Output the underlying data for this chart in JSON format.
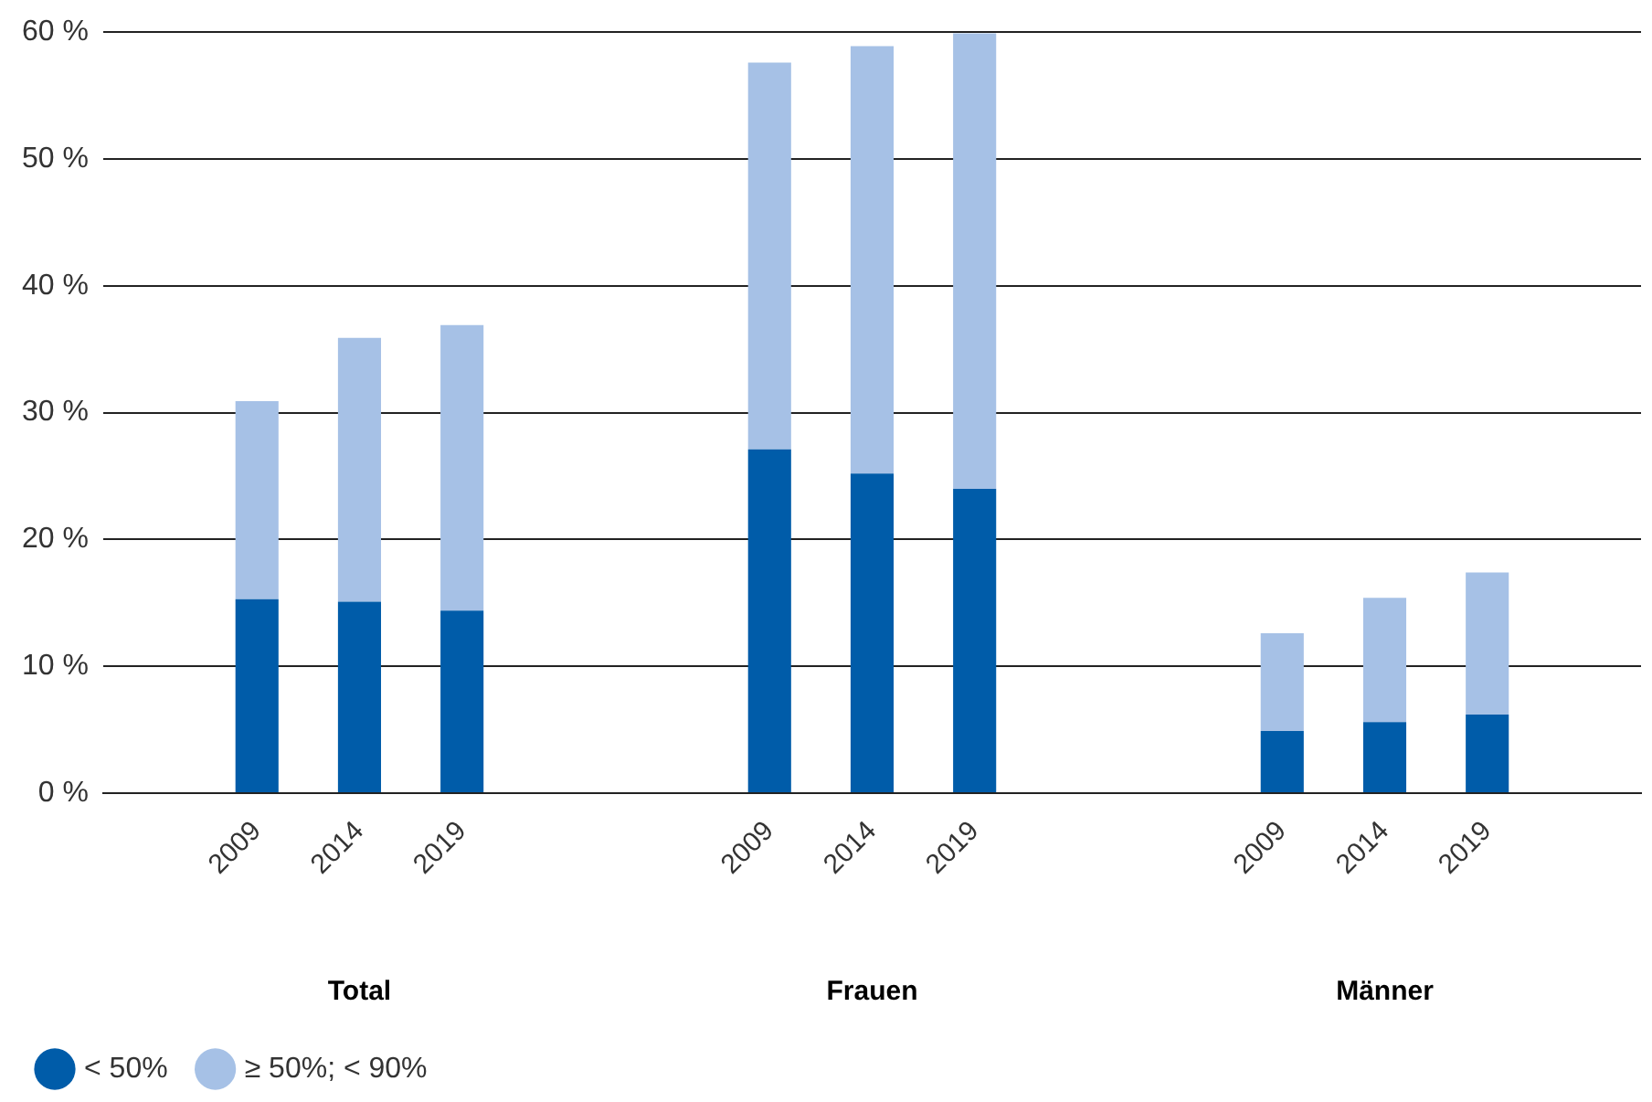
{
  "chart_data": {
    "type": "bar",
    "stacked": true,
    "categories": [
      null,
      "2009",
      "2014",
      "2019",
      null,
      null,
      "2009",
      "2014",
      "2019",
      null,
      null,
      "2009",
      "2014",
      "2019",
      null
    ],
    "series": [
      {
        "name": "< 50%",
        "color": "#005ca9",
        "values": [
          null,
          15.3,
          15.1,
          14.4,
          null,
          null,
          27.1,
          25.2,
          24.0,
          null,
          null,
          4.9,
          5.6,
          6.2,
          null
        ]
      },
      {
        "name": "≥ 50%; < 90%",
        "color": "#a6c1e6",
        "values": [
          null,
          15.6,
          20.8,
          22.5,
          null,
          null,
          30.5,
          33.7,
          35.9,
          null,
          null,
          7.7,
          9.8,
          11.2,
          null
        ]
      }
    ],
    "annotations": [
      "Total",
      "Frauen",
      "Männer"
    ],
    "ylim": [
      0,
      60
    ],
    "yticks": [
      {
        "value": 0,
        "label": "0 %"
      },
      {
        "value": 10,
        "label": "10 %"
      },
      {
        "value": 20,
        "label": "20 %"
      },
      {
        "value": 30,
        "label": "30 %"
      },
      {
        "value": 40,
        "label": "40 %"
      },
      {
        "value": 50,
        "label": "50 %"
      },
      {
        "value": 60,
        "label": "60 %"
      }
    ],
    "grid": "y",
    "legend": "bottom left"
  }
}
